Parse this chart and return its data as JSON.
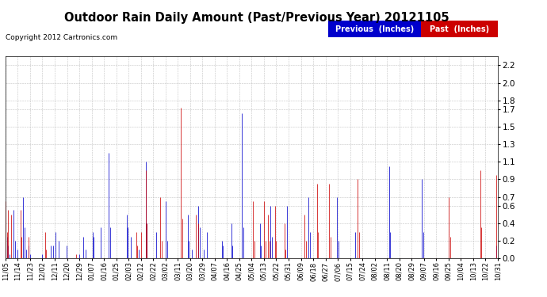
{
  "title": "Outdoor Rain Daily Amount (Past/Previous Year) 20121105",
  "copyright": "Copyright 2012 Cartronics.com",
  "legend_previous": "Previous  (Inches)",
  "legend_past": "Past  (Inches)",
  "previous_color": "#0000cc",
  "past_color": "#cc0000",
  "yticks": [
    0.0,
    0.2,
    0.4,
    0.6,
    0.7,
    0.9,
    1.1,
    1.3,
    1.5,
    1.7,
    1.8,
    2.0,
    2.2
  ],
  "ylim": [
    0.0,
    2.3
  ],
  "background_color": "#ffffff",
  "plot_bg": "#ffffff",
  "grid_color": "#aaaaaa",
  "title_fontsize": 11,
  "xtick_labels": [
    "11/05",
    "11/14",
    "11/23",
    "12/02",
    "12/11",
    "12/20",
    "12/29",
    "01/07",
    "01/16",
    "01/25",
    "02/03",
    "02/12",
    "02/22",
    "03/02",
    "03/11",
    "03/20",
    "03/29",
    "04/07",
    "04/16",
    "04/25",
    "05/04",
    "05/13",
    "05/22",
    "05/31",
    "06/09",
    "06/18",
    "06/27",
    "07/06",
    "07/15",
    "07/24",
    "08/02",
    "08/11",
    "08/20",
    "08/29",
    "09/07",
    "09/16",
    "09/25",
    "10/04",
    "10/13",
    "10/22",
    "10/31"
  ],
  "previous_data": [
    0.1,
    0.25,
    0.15,
    0.05,
    0.0,
    0.0,
    0.55,
    0.2,
    0.0,
    0.1,
    0.0,
    0.0,
    0.0,
    0.7,
    0.35,
    0.1,
    0.0,
    0.15,
    0.05,
    0.0,
    0.0,
    0.0,
    0.0,
    0.0,
    0.0,
    0.0,
    0.0,
    0.05,
    0.0,
    0.0,
    0.0,
    0.0,
    0.0,
    0.15,
    0.0,
    0.15,
    0.0,
    0.3,
    0.0,
    0.2,
    0.0,
    0.0,
    0.0,
    0.0,
    0.0,
    0.15,
    0.0,
    0.0,
    0.0,
    0.0,
    0.0,
    0.0,
    0.0,
    0.0,
    0.05,
    0.0,
    0.0,
    0.25,
    0.0,
    0.1,
    0.0,
    0.0,
    0.0,
    0.0,
    0.3,
    0.25,
    0.0,
    0.0,
    0.0,
    0.0,
    0.35,
    0.0,
    0.0,
    0.0,
    0.0,
    0.0,
    1.2,
    0.35,
    0.0,
    0.0,
    0.0,
    0.0,
    0.0,
    0.0,
    0.0,
    0.0,
    0.0,
    0.0,
    0.0,
    0.5,
    0.35,
    0.0,
    0.25,
    0.0,
    0.0,
    0.0,
    0.0,
    0.0,
    0.1,
    0.0,
    0.0,
    0.0,
    0.0,
    1.1,
    0.4,
    0.0,
    0.0,
    0.0,
    0.0,
    0.0,
    0.0,
    0.3,
    0.0,
    0.0,
    0.0,
    0.0,
    0.0,
    0.0,
    0.65,
    0.2,
    0.0,
    0.0,
    0.0,
    0.0,
    0.0,
    0.0,
    0.0,
    0.0,
    0.0,
    0.0,
    0.0,
    0.0,
    0.0,
    0.0,
    0.5,
    0.2,
    0.0,
    0.1,
    0.0,
    0.0,
    0.0,
    0.0,
    0.6,
    0.35,
    0.0,
    0.0,
    0.1,
    0.0,
    0.3,
    0.0,
    0.0,
    0.0,
    0.0,
    0.0,
    0.0,
    0.0,
    0.0,
    0.0,
    0.0,
    0.2,
    0.15,
    0.0,
    0.0,
    0.0,
    0.0,
    0.0,
    0.4,
    0.15,
    0.0,
    0.0,
    0.0,
    0.0,
    0.0,
    0.0,
    1.65,
    0.35,
    0.0,
    0.0,
    0.0,
    0.0,
    0.0,
    0.0,
    0.0,
    0.0,
    0.0,
    0.0,
    0.0,
    0.4,
    0.15,
    0.0,
    0.0,
    0.0,
    0.0,
    0.0,
    0.0,
    0.6,
    0.25,
    0.0,
    0.0,
    0.0,
    0.0,
    0.0,
    0.0,
    0.0,
    0.0,
    0.0,
    0.0,
    0.6,
    0.0,
    0.0,
    0.0,
    0.0,
    0.0,
    0.0,
    0.0,
    0.0,
    0.0,
    0.0,
    0.0,
    0.0,
    0.0,
    0.0,
    0.0,
    0.7,
    0.3,
    0.0,
    0.0,
    0.0,
    0.0,
    0.0,
    0.0,
    0.0,
    0.0,
    0.0,
    0.0,
    0.0,
    0.0,
    0.0,
    0.0,
    0.0,
    0.0,
    0.0,
    0.0,
    0.0,
    0.7,
    0.2,
    0.0,
    0.0,
    0.0,
    0.0,
    0.0,
    0.0,
    0.0,
    0.0,
    0.0,
    0.0,
    0.0,
    0.3,
    0.0,
    0.0,
    0.0,
    0.0,
    0.0,
    0.0,
    0.0,
    0.0,
    0.0,
    0.0,
    0.0,
    0.0,
    0.0,
    0.0,
    0.0,
    0.0,
    0.0,
    0.0,
    0.0,
    0.0,
    0.0,
    0.0,
    0.0,
    0.0,
    1.05,
    0.3,
    0.0,
    0.0,
    0.0,
    0.0,
    0.0,
    0.0,
    0.0,
    0.0,
    0.0,
    0.0,
    0.0,
    0.0,
    0.0,
    0.0,
    0.0,
    0.0,
    0.0,
    0.0,
    0.0,
    0.0,
    0.0,
    0.0,
    0.9,
    0.3,
    0.0,
    0.0,
    0.0,
    0.0,
    0.0,
    0.0,
    0.0,
    0.0,
    0.0,
    0.0,
    0.0,
    0.0,
    0.0,
    0.0,
    0.0,
    0.0,
    0.0,
    0.0,
    0.0,
    0.0,
    0.0,
    0.0,
    0.0,
    0.0,
    0.0,
    0.0,
    0.0,
    0.0,
    0.0,
    0.0,
    0.0,
    0.0,
    0.0,
    0.0,
    0.0,
    0.0,
    0.0,
    0.0,
    0.0,
    0.0,
    0.0,
    0.0,
    0.0,
    0.0,
    0.0,
    0.0,
    0.0,
    0.0,
    0.0,
    0.0,
    0.0,
    0.0,
    0.0,
    0.15,
    0.3
  ],
  "past_data": [
    0.65,
    0.3,
    0.55,
    0.0,
    0.5,
    0.0,
    0.0,
    0.0,
    0.0,
    0.0,
    0.0,
    0.55,
    0.25,
    0.0,
    0.0,
    0.0,
    0.0,
    0.25,
    0.0,
    0.0,
    0.0,
    0.0,
    0.0,
    0.0,
    0.0,
    0.0,
    0.0,
    0.0,
    0.0,
    0.3,
    0.1,
    0.0,
    0.0,
    0.0,
    0.0,
    0.0,
    0.0,
    0.0,
    0.0,
    0.0,
    0.0,
    0.0,
    0.0,
    0.0,
    0.0,
    0.0,
    0.0,
    0.0,
    0.0,
    0.0,
    0.0,
    0.0,
    0.05,
    0.0,
    0.0,
    0.0,
    0.0,
    0.0,
    0.0,
    0.0,
    0.0,
    0.0,
    0.0,
    0.0,
    0.0,
    0.0,
    0.0,
    0.0,
    0.0,
    0.0,
    0.0,
    0.0,
    0.0,
    0.0,
    0.0,
    0.0,
    0.0,
    0.0,
    0.0,
    0.0,
    0.0,
    0.0,
    0.0,
    0.0,
    0.0,
    0.0,
    0.0,
    0.0,
    0.0,
    0.0,
    0.0,
    0.0,
    0.0,
    0.0,
    0.0,
    0.0,
    0.3,
    0.15,
    0.0,
    0.0,
    0.3,
    0.0,
    0.0,
    1.0,
    0.4,
    0.0,
    0.0,
    0.0,
    0.0,
    0.0,
    0.0,
    0.0,
    0.0,
    0.0,
    0.7,
    0.2,
    0.0,
    0.0,
    0.0,
    0.0,
    0.0,
    0.0,
    0.0,
    0.0,
    0.0,
    0.0,
    0.0,
    0.0,
    0.0,
    1.72,
    0.45,
    0.0,
    0.0,
    0.0,
    0.0,
    0.0,
    0.0,
    0.0,
    0.0,
    0.0,
    0.5,
    0.0,
    0.4,
    0.0,
    0.0,
    0.0,
    0.0,
    0.0,
    0.0,
    0.0,
    0.0,
    0.0,
    0.0,
    0.0,
    0.0,
    0.0,
    0.0,
    0.0,
    0.0,
    0.0,
    0.0,
    0.0,
    0.0,
    0.0,
    0.0,
    0.0,
    0.0,
    0.0,
    0.0,
    0.0,
    0.0,
    0.0,
    0.0,
    0.0,
    0.0,
    0.0,
    0.0,
    0.0,
    0.0,
    0.0,
    0.0,
    0.0,
    0.65,
    0.2,
    0.0,
    0.0,
    0.0,
    0.0,
    0.0,
    0.0,
    0.65,
    0.2,
    0.0,
    0.5,
    0.2,
    0.0,
    0.0,
    0.0,
    0.6,
    0.2,
    0.0,
    0.0,
    0.0,
    0.0,
    0.0,
    0.4,
    0.1,
    0.0,
    0.0,
    0.0,
    0.0,
    0.0,
    0.0,
    0.0,
    0.0,
    0.0,
    0.0,
    0.0,
    0.0,
    0.0,
    0.5,
    0.2,
    0.0,
    0.0,
    0.0,
    0.0,
    0.0,
    0.0,
    0.0,
    0.85,
    0.3,
    0.0,
    0.0,
    0.0,
    0.0,
    0.0,
    0.0,
    0.0,
    0.85,
    0.25,
    0.0,
    0.0,
    0.0,
    0.0,
    0.0,
    0.0,
    0.0,
    0.0,
    0.0,
    0.0,
    0.0,
    0.0,
    0.0,
    0.0,
    0.0,
    0.0,
    0.0,
    0.0,
    0.0,
    0.9,
    0.3,
    0.0,
    0.0,
    0.0,
    0.0,
    0.0,
    0.0,
    0.0,
    0.0,
    0.0,
    0.0,
    0.0,
    0.0,
    0.0,
    0.0,
    0.0,
    0.0,
    0.0,
    0.0,
    0.0,
    0.0,
    0.0,
    0.0,
    0.0,
    0.0,
    0.0,
    0.0,
    0.0,
    0.0,
    0.0,
    0.0,
    0.0,
    0.0,
    0.0,
    0.0,
    0.0,
    0.0,
    0.0,
    0.0,
    0.0,
    0.0,
    0.0,
    0.0,
    0.0,
    0.0,
    0.0,
    0.0,
    0.0,
    0.0,
    0.0,
    0.0,
    0.0,
    0.0,
    0.0,
    0.0,
    0.0,
    0.0,
    0.0,
    0.0,
    0.0,
    0.0,
    0.0,
    0.0,
    0.0,
    0.0,
    0.0,
    0.7,
    0.25,
    0.0,
    0.0,
    0.0,
    0.0,
    0.0,
    0.0,
    0.0,
    0.0,
    0.0,
    0.0,
    0.0,
    0.0,
    0.0,
    0.0,
    0.0,
    0.0,
    0.0,
    0.0,
    0.0,
    0.0,
    0.0,
    1.0,
    0.35,
    0.0,
    0.0,
    0.0,
    0.0,
    0.0,
    0.0,
    0.0,
    0.0,
    0.0,
    0.0,
    0.95,
    0.4
  ]
}
